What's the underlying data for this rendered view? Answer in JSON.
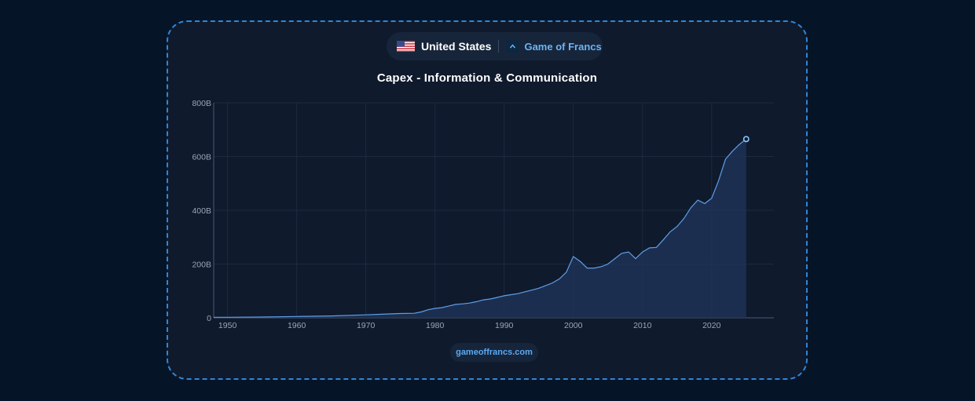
{
  "header": {
    "country": "United States",
    "brand": "Game of Francs"
  },
  "footer": {
    "source": "gameoffrancs.com"
  },
  "colors": {
    "accent": "#6cb4f5",
    "line": "#5f9ee8",
    "area": "#1e3356",
    "background": "#0f1a2d",
    "border": "#2e86d6"
  },
  "chart_data": {
    "type": "area",
    "title": "Capex - Information & Communication",
    "xlabel": "",
    "ylabel": "",
    "xlim": [
      1948,
      2029
    ],
    "ylim": [
      0,
      800
    ],
    "x_ticks": [
      1950,
      1960,
      1970,
      1980,
      1990,
      2000,
      2010,
      2020
    ],
    "y_ticks": [
      0,
      200,
      400,
      600,
      800
    ],
    "y_tick_labels": [
      "0",
      "200B",
      "400B",
      "600B",
      "800B"
    ],
    "grid": true,
    "x": [
      1948,
      1950,
      1955,
      1960,
      1965,
      1970,
      1972,
      1975,
      1977,
      1978,
      1979,
      1980,
      1981,
      1982,
      1983,
      1984,
      1985,
      1986,
      1987,
      1988,
      1989,
      1990,
      1991,
      1992,
      1993,
      1994,
      1995,
      1996,
      1997,
      1998,
      1999,
      2000,
      2001,
      2002,
      2003,
      2004,
      2005,
      2006,
      2007,
      2008,
      2009,
      2010,
      2011,
      2012,
      2013,
      2014,
      2015,
      2016,
      2017,
      2018,
      2019,
      2020,
      2021,
      2022,
      2023,
      2024,
      2025
    ],
    "series": [
      {
        "values": [
          2,
          2,
          3,
          5,
          7,
          11,
          13,
          16,
          17,
          22,
          30,
          35,
          38,
          44,
          50,
          52,
          55,
          60,
          67,
          70,
          76,
          82,
          86,
          90,
          97,
          103,
          110,
          120,
          130,
          145,
          170,
          228,
          210,
          185,
          185,
          190,
          200,
          220,
          240,
          245,
          220,
          245,
          260,
          262,
          290,
          320,
          340,
          370,
          410,
          438,
          425,
          445,
          510,
          590,
          620,
          645,
          665
        ]
      }
    ]
  }
}
